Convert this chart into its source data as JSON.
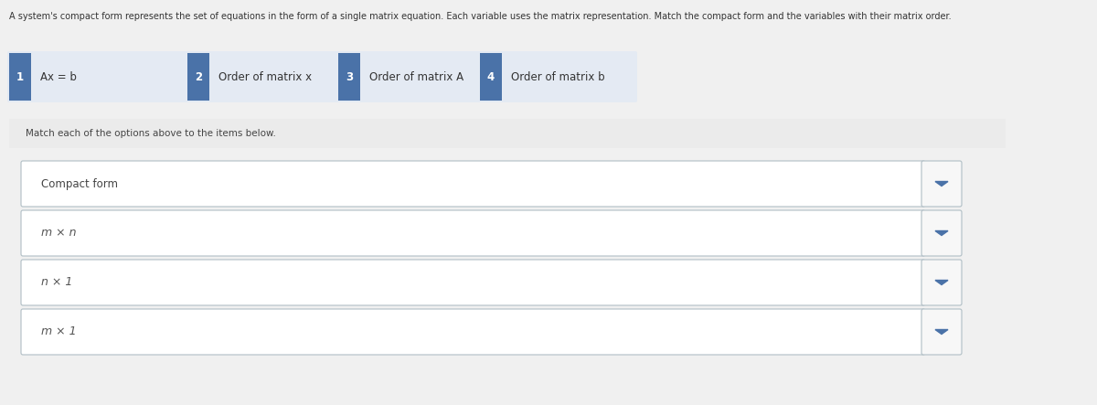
{
  "title_text": "A system's compact form represents the set of equations in the form of a single matrix equation. Each variable uses the matrix representation. Match the compact form and the variables with their matrix order.",
  "bg_color": "#f0f0f0",
  "white": "#ffffff",
  "badge_color": "#4a72a8",
  "badge_text_color": "#ffffff",
  "items": [
    {
      "badge": "1",
      "label": "Ax = b"
    },
    {
      "badge": "2",
      "label": "Order of matrix x"
    },
    {
      "badge": "3",
      "label": "Order of matrix A"
    },
    {
      "badge": "4",
      "label": "Order of matrix b"
    }
  ],
  "items_bg": "#e4eaf3",
  "instruction": "Match each of the options above to the items below.",
  "instruction_bg": "#ebebeb",
  "dropdown_rows": [
    "Compact form",
    "m × n",
    "n × 1",
    "m × 1"
  ],
  "dropdown_bg": "#ffffff",
  "dropdown_border": "#b0bec5",
  "arrow_color": "#4a72a8",
  "arrow_box_bg": "#f7f7f7"
}
